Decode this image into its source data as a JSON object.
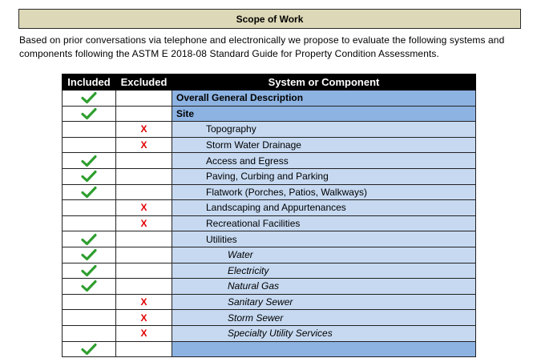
{
  "banner": {
    "title": "Scope of Work"
  },
  "intro": {
    "text": "Based on prior conversations via telephone and electronically we propose to evaluate the following systems and components following the ASTM E 2018-08 Standard Guide for Property Condition Assessments."
  },
  "table": {
    "headers": {
      "included": "Included",
      "excluded": "Excluded",
      "system": "System or Component"
    },
    "colors": {
      "header_bg": "#000000",
      "section_bg": "#8db3e2",
      "item_bg": "#c6d9f1",
      "check": "#2e9e2e",
      "cross": "#e00000"
    },
    "rows": [
      {
        "label": "Overall General Description",
        "level": 0,
        "included": true,
        "excluded": false
      },
      {
        "label": "Site",
        "level": 0,
        "included": true,
        "excluded": false
      },
      {
        "label": "Topography",
        "level": 1,
        "included": false,
        "excluded": true
      },
      {
        "label": "Storm Water Drainage",
        "level": 1,
        "included": false,
        "excluded": true
      },
      {
        "label": "Access and Egress",
        "level": 1,
        "included": true,
        "excluded": false
      },
      {
        "label": "Paving, Curbing and Parking",
        "level": 1,
        "included": true,
        "excluded": false
      },
      {
        "label": "Flatwork (Porches, Patios, Walkways)",
        "level": 1,
        "included": true,
        "excluded": false
      },
      {
        "label": "Landscaping and Appurtenances",
        "level": 1,
        "included": false,
        "excluded": true
      },
      {
        "label": "Recreational Facilities",
        "level": 1,
        "included": false,
        "excluded": true
      },
      {
        "label": "Utilities",
        "level": 1,
        "included": true,
        "excluded": false
      },
      {
        "label": "Water",
        "level": 2,
        "included": true,
        "excluded": false
      },
      {
        "label": "Electricity",
        "level": 2,
        "included": true,
        "excluded": false
      },
      {
        "label": "Natural Gas",
        "level": 2,
        "included": true,
        "excluded": false
      },
      {
        "label": "Sanitary Sewer",
        "level": 2,
        "included": false,
        "excluded": true
      },
      {
        "label": "Storm Sewer",
        "level": 2,
        "included": false,
        "excluded": true
      },
      {
        "label": "Specialty Utility Services",
        "level": 2,
        "included": false,
        "excluded": true
      },
      {
        "label": "",
        "level": 0,
        "included": true,
        "excluded": false
      }
    ],
    "mark_cross": "X"
  }
}
